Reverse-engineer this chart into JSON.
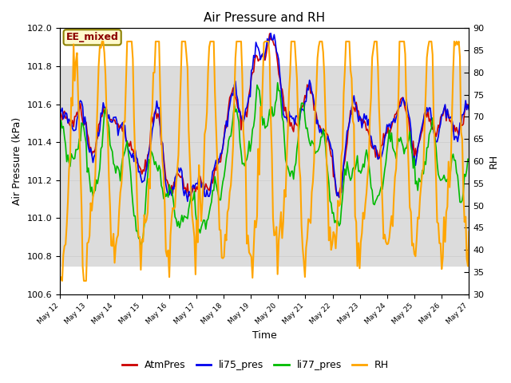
{
  "title": "Air Pressure and RH",
  "xlabel": "Time",
  "ylabel_left": "Air Pressure (kPa)",
  "ylabel_right": "RH",
  "ylim_left": [
    100.6,
    102.0
  ],
  "ylim_right": [
    30,
    90
  ],
  "yticks_left": [
    100.6,
    100.8,
    101.0,
    101.2,
    101.4,
    101.6,
    101.8,
    102.0
  ],
  "yticks_right": [
    30,
    35,
    40,
    45,
    50,
    55,
    60,
    65,
    70,
    75,
    80,
    85,
    90
  ],
  "xtick_labels": [
    "May 12",
    "May 13",
    "May 14",
    "May 15",
    "May 16",
    "May 17",
    "May 18",
    "May 19",
    "May 20",
    "May 21",
    "May 22",
    "May 23",
    "May 24",
    "May 25",
    "May 26",
    "May 27"
  ],
  "annotation_text": "EE_mixed",
  "annotation_color": "#8B0000",
  "annotation_bg": "#FFFACD",
  "annotation_border": "#8B8000",
  "colors": {
    "AtmPres": "#CC0000",
    "li75_pres": "#0000EE",
    "li77_pres": "#00BB00",
    "RH": "#FFA500"
  },
  "linewidths": {
    "AtmPres": 1.2,
    "li75_pres": 1.2,
    "li77_pres": 1.2,
    "RH": 1.5
  },
  "bg_band_ylim": [
    100.75,
    101.8
  ],
  "bg_band_color": "#DCDCDC",
  "grid_color": "#CCCCCC",
  "legend_items": [
    "AtmPres",
    "li75_pres",
    "li77_pres",
    "RH"
  ],
  "legend_colors": [
    "#CC0000",
    "#0000EE",
    "#00BB00",
    "#FFA500"
  ],
  "figsize": [
    6.4,
    4.8
  ],
  "dpi": 100
}
